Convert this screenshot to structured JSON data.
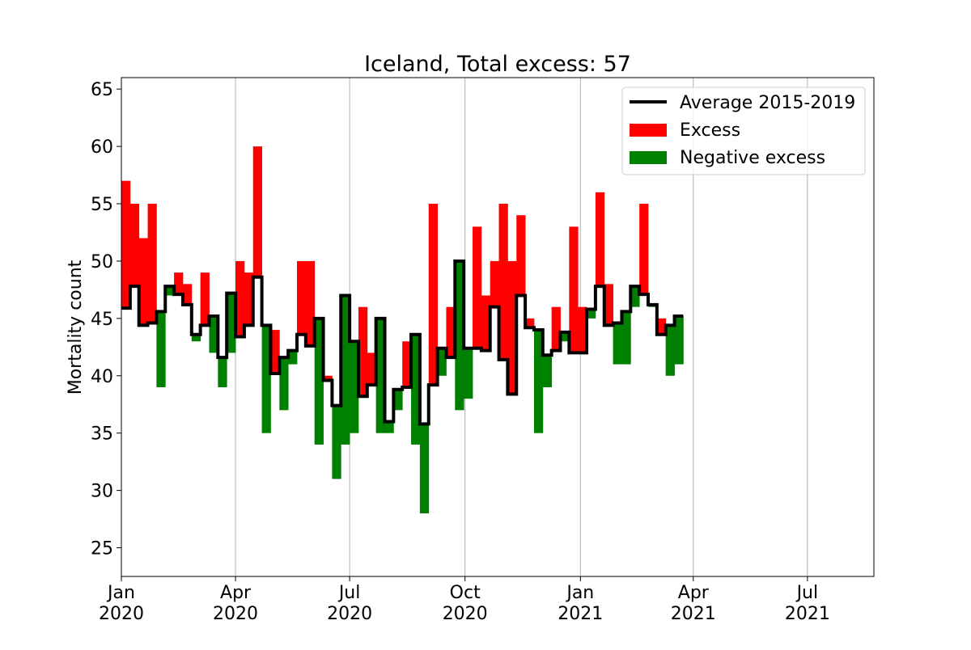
{
  "chart_data": {
    "type": "bar",
    "title": "Iceland, Total excess: 57",
    "xlabel": "",
    "ylabel": "Mortality count",
    "ylim": [
      22.5,
      66
    ],
    "xlim": [
      "2020-01-01",
      "2021-08-23"
    ],
    "yticks": [
      25,
      30,
      35,
      40,
      45,
      50,
      55,
      60,
      65
    ],
    "xticks": [
      {
        "date": "2020-01-01",
        "label": [
          "Jan",
          "2020"
        ]
      },
      {
        "date": "2020-04-01",
        "label": [
          "Apr",
          "2020"
        ]
      },
      {
        "date": "2020-07-01",
        "label": [
          "Jul",
          "2020"
        ]
      },
      {
        "date": "2020-10-01",
        "label": [
          "Oct",
          "2020"
        ]
      },
      {
        "date": "2021-01-01",
        "label": [
          "Jan",
          "2021"
        ]
      },
      {
        "date": "2021-04-01",
        "label": [
          "Apr",
          "2021"
        ]
      },
      {
        "date": "2021-07-01",
        "label": [
          "Jul",
          "2021"
        ]
      }
    ],
    "grid": "vertical",
    "legend_position": "top-right",
    "week_start": "2020-01-01",
    "series": [
      {
        "name": "Average 2015-2019",
        "color": "#000000",
        "values": [
          45.9,
          47.8,
          44.4,
          44.6,
          45.6,
          47.8,
          47.1,
          46.2,
          43.6,
          44.4,
          45.2,
          41.6,
          47.2,
          43.4,
          44.4,
          48.6,
          44.4,
          40.2,
          41.6,
          42.2,
          43.6,
          42.6,
          45,
          39.6,
          37.4,
          47,
          43,
          38.2,
          39.2,
          45,
          36,
          38.8,
          39,
          43.6,
          35.8,
          39.2,
          42.4,
          41.6,
          50,
          42.4,
          42.4,
          42.2,
          46,
          41.4,
          38.4,
          47,
          44.2,
          44,
          41.8,
          42.2,
          43.8,
          42,
          42,
          45.8,
          47.8,
          44.4,
          44.6,
          45.6,
          47.8,
          47.1,
          46.2,
          43.6,
          44.4,
          45.2
        ]
      },
      {
        "name": "Excess",
        "color": "#ff0000",
        "values": [
          57,
          55,
          52,
          55,
          39,
          47,
          49,
          48,
          43,
          49,
          42,
          39,
          42,
          50,
          49,
          60,
          35,
          44,
          37,
          41,
          50,
          50,
          34,
          40,
          31,
          34,
          35,
          46,
          42,
          35,
          35,
          37,
          43,
          34,
          28,
          55,
          40,
          46,
          37,
          38,
          53,
          47,
          50,
          55,
          50,
          54,
          45,
          35,
          39,
          46,
          43,
          53,
          46,
          45,
          56,
          48,
          41,
          41,
          46,
          55,
          46,
          45,
          40,
          41
        ]
      },
      {
        "name": "Negative excess",
        "color": "#008000"
      }
    ]
  }
}
